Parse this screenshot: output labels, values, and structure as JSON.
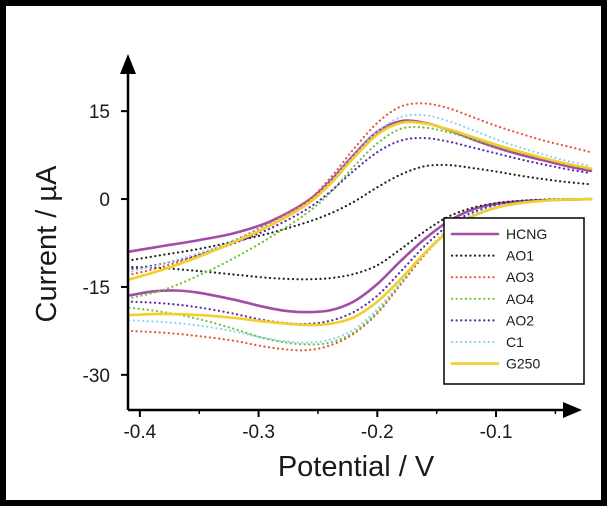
{
  "chart_data": {
    "type": "line",
    "title": "",
    "xlabel": "Potential / V",
    "ylabel": "Current / µA",
    "xlim": [
      -0.41,
      -0.02
    ],
    "ylim": [
      -36,
      21
    ],
    "x_ticks": [
      -0.4,
      -0.3,
      -0.2,
      -0.1
    ],
    "x_tick_labels": [
      "-0.4",
      "-0.3",
      "-0.2",
      "-0.1"
    ],
    "y_ticks": [
      -30,
      -15,
      0,
      15
    ],
    "y_tick_labels": [
      "-30",
      "-15",
      "0",
      "15"
    ],
    "grid": false,
    "legend_position": "lower-right",
    "series": [
      {
        "name": "HCNG",
        "color": "#a44ca8",
        "style": "solid",
        "forward": [
          [
            -0.41,
            -9
          ],
          [
            -0.38,
            -8
          ],
          [
            -0.35,
            -7
          ],
          [
            -0.32,
            -5.8
          ],
          [
            -0.29,
            -3.8
          ],
          [
            -0.26,
            -0.5
          ],
          [
            -0.24,
            3
          ],
          [
            -0.22,
            7.5
          ],
          [
            -0.2,
            11.5
          ],
          [
            -0.18,
            13.3
          ],
          [
            -0.16,
            13
          ],
          [
            -0.14,
            11.8
          ],
          [
            -0.12,
            10.2
          ],
          [
            -0.1,
            8.8
          ],
          [
            -0.08,
            7.6
          ],
          [
            -0.06,
            6.6
          ],
          [
            -0.04,
            5.6
          ],
          [
            -0.02,
            4.8
          ]
        ],
        "reverse": [
          [
            -0.02,
            0
          ],
          [
            -0.04,
            -0.1
          ],
          [
            -0.06,
            -0.2
          ],
          [
            -0.08,
            -0.4
          ],
          [
            -0.1,
            -0.8
          ],
          [
            -0.12,
            -1.8
          ],
          [
            -0.14,
            -3.8
          ],
          [
            -0.16,
            -6.8
          ],
          [
            -0.18,
            -10.5
          ],
          [
            -0.2,
            -14.5
          ],
          [
            -0.22,
            -17.5
          ],
          [
            -0.24,
            -19
          ],
          [
            -0.26,
            -19.3
          ],
          [
            -0.28,
            -19
          ],
          [
            -0.3,
            -18.2
          ],
          [
            -0.32,
            -17.2
          ],
          [
            -0.35,
            -16
          ],
          [
            -0.37,
            -15.6
          ],
          [
            -0.39,
            -15.8
          ],
          [
            -0.41,
            -16.5
          ]
        ]
      },
      {
        "name": "AO1",
        "color": "#222222",
        "style": "dotted",
        "forward": [
          [
            -0.41,
            -10.5
          ],
          [
            -0.38,
            -9.5
          ],
          [
            -0.35,
            -8.5
          ],
          [
            -0.32,
            -7.2
          ],
          [
            -0.29,
            -5.8
          ],
          [
            -0.26,
            -4
          ],
          [
            -0.24,
            -2.5
          ],
          [
            -0.22,
            -0.5
          ],
          [
            -0.2,
            2
          ],
          [
            -0.18,
            4.2
          ],
          [
            -0.16,
            5.6
          ],
          [
            -0.14,
            5.8
          ],
          [
            -0.12,
            5.3
          ],
          [
            -0.1,
            4.7
          ],
          [
            -0.08,
            4
          ],
          [
            -0.06,
            3.4
          ],
          [
            -0.04,
            2.9
          ],
          [
            -0.02,
            2.5
          ]
        ],
        "reverse": [
          [
            -0.02,
            0
          ],
          [
            -0.04,
            0
          ],
          [
            -0.06,
            -0.1
          ],
          [
            -0.08,
            -0.3
          ],
          [
            -0.1,
            -0.7
          ],
          [
            -0.12,
            -1.5
          ],
          [
            -0.14,
            -3
          ],
          [
            -0.16,
            -5.5
          ],
          [
            -0.18,
            -8.5
          ],
          [
            -0.2,
            -11.3
          ],
          [
            -0.22,
            -12.8
          ],
          [
            -0.24,
            -13.5
          ],
          [
            -0.26,
            -13.7
          ],
          [
            -0.28,
            -13.6
          ],
          [
            -0.3,
            -13.3
          ],
          [
            -0.32,
            -12.9
          ],
          [
            -0.35,
            -12.3
          ],
          [
            -0.38,
            -11.8
          ],
          [
            -0.41,
            -11.6
          ]
        ]
      },
      {
        "name": "AO3",
        "color": "#e8553a",
        "style": "dotted",
        "forward": [
          [
            -0.41,
            -13
          ],
          [
            -0.38,
            -11.5
          ],
          [
            -0.35,
            -9.5
          ],
          [
            -0.32,
            -7
          ],
          [
            -0.29,
            -4
          ],
          [
            -0.26,
            -0.5
          ],
          [
            -0.24,
            3.5
          ],
          [
            -0.22,
            8.5
          ],
          [
            -0.2,
            13
          ],
          [
            -0.18,
            15.8
          ],
          [
            -0.16,
            16.3
          ],
          [
            -0.14,
            15.5
          ],
          [
            -0.12,
            14
          ],
          [
            -0.1,
            12.5
          ],
          [
            -0.08,
            11.2
          ],
          [
            -0.06,
            10
          ],
          [
            -0.04,
            9
          ],
          [
            -0.02,
            8
          ]
        ],
        "reverse": [
          [
            -0.02,
            0
          ],
          [
            -0.04,
            -0.1
          ],
          [
            -0.06,
            -0.3
          ],
          [
            -0.08,
            -0.7
          ],
          [
            -0.1,
            -1.5
          ],
          [
            -0.12,
            -3
          ],
          [
            -0.14,
            -5.5
          ],
          [
            -0.16,
            -9.5
          ],
          [
            -0.18,
            -14.5
          ],
          [
            -0.2,
            -19.5
          ],
          [
            -0.22,
            -23
          ],
          [
            -0.24,
            -25
          ],
          [
            -0.26,
            -25.8
          ],
          [
            -0.28,
            -25.6
          ],
          [
            -0.3,
            -25
          ],
          [
            -0.32,
            -24.2
          ],
          [
            -0.35,
            -23.4
          ],
          [
            -0.38,
            -22.8
          ],
          [
            -0.41,
            -22.5
          ]
        ]
      },
      {
        "name": "AO4",
        "color": "#6fc23a",
        "style": "dotted",
        "forward": [
          [
            -0.41,
            -17
          ],
          [
            -0.38,
            -15.5
          ],
          [
            -0.35,
            -13
          ],
          [
            -0.32,
            -10
          ],
          [
            -0.29,
            -6.5
          ],
          [
            -0.26,
            -2.5
          ],
          [
            -0.24,
            1
          ],
          [
            -0.22,
            5.5
          ],
          [
            -0.2,
            9.5
          ],
          [
            -0.18,
            12
          ],
          [
            -0.16,
            12.2
          ],
          [
            -0.14,
            11.4
          ],
          [
            -0.12,
            10.2
          ],
          [
            -0.1,
            9
          ],
          [
            -0.08,
            7.9
          ],
          [
            -0.06,
            6.9
          ],
          [
            -0.04,
            6
          ],
          [
            -0.02,
            5.2
          ]
        ],
        "reverse": [
          [
            -0.02,
            0
          ],
          [
            -0.04,
            -0.1
          ],
          [
            -0.06,
            -0.3
          ],
          [
            -0.08,
            -0.6
          ],
          [
            -0.1,
            -1.3
          ],
          [
            -0.12,
            -2.7
          ],
          [
            -0.14,
            -5.2
          ],
          [
            -0.16,
            -9.2
          ],
          [
            -0.18,
            -14.3
          ],
          [
            -0.2,
            -19.3
          ],
          [
            -0.22,
            -22.8
          ],
          [
            -0.24,
            -24.5
          ],
          [
            -0.26,
            -24.8
          ],
          [
            -0.28,
            -24.4
          ],
          [
            -0.3,
            -23.5
          ],
          [
            -0.32,
            -22.2
          ],
          [
            -0.35,
            -20.5
          ],
          [
            -0.38,
            -19.3
          ],
          [
            -0.41,
            -18.5
          ]
        ]
      },
      {
        "name": "AO2",
        "color": "#5a2aa8",
        "style": "dotted",
        "forward": [
          [
            -0.41,
            -12
          ],
          [
            -0.38,
            -11
          ],
          [
            -0.35,
            -9.5
          ],
          [
            -0.32,
            -7.5
          ],
          [
            -0.29,
            -5
          ],
          [
            -0.26,
            -1.8
          ],
          [
            -0.24,
            1.2
          ],
          [
            -0.22,
            4.8
          ],
          [
            -0.2,
            8
          ],
          [
            -0.18,
            10
          ],
          [
            -0.16,
            10.4
          ],
          [
            -0.14,
            9.8
          ],
          [
            -0.12,
            8.8
          ],
          [
            -0.1,
            7.8
          ],
          [
            -0.08,
            6.8
          ],
          [
            -0.06,
            5.9
          ],
          [
            -0.04,
            5.1
          ],
          [
            -0.02,
            4.4
          ]
        ],
        "reverse": [
          [
            -0.02,
            0
          ],
          [
            -0.04,
            -0.1
          ],
          [
            -0.06,
            -0.2
          ],
          [
            -0.08,
            -0.5
          ],
          [
            -0.1,
            -1.1
          ],
          [
            -0.12,
            -2.3
          ],
          [
            -0.14,
            -4.5
          ],
          [
            -0.16,
            -8
          ],
          [
            -0.18,
            -12.3
          ],
          [
            -0.2,
            -16.5
          ],
          [
            -0.22,
            -19.3
          ],
          [
            -0.24,
            -20.8
          ],
          [
            -0.26,
            -21.3
          ],
          [
            -0.28,
            -21.1
          ],
          [
            -0.3,
            -20.5
          ],
          [
            -0.32,
            -19.6
          ],
          [
            -0.35,
            -18.5
          ],
          [
            -0.38,
            -17.8
          ],
          [
            -0.41,
            -17.5
          ]
        ]
      },
      {
        "name": "C1",
        "color": "#8fd4ee",
        "style": "dotted",
        "forward": [
          [
            -0.41,
            -12.5
          ],
          [
            -0.38,
            -11
          ],
          [
            -0.35,
            -9.2
          ],
          [
            -0.32,
            -7
          ],
          [
            -0.29,
            -4.2
          ],
          [
            -0.26,
            -0.8
          ],
          [
            -0.24,
            2.8
          ],
          [
            -0.22,
            7.3
          ],
          [
            -0.2,
            11.5
          ],
          [
            -0.18,
            14
          ],
          [
            -0.16,
            14.3
          ],
          [
            -0.14,
            13.3
          ],
          [
            -0.12,
            11.8
          ],
          [
            -0.1,
            10.2
          ],
          [
            -0.08,
            8.8
          ],
          [
            -0.06,
            7.6
          ],
          [
            -0.04,
            6.5
          ],
          [
            -0.02,
            5.6
          ]
        ],
        "reverse": [
          [
            -0.02,
            0
          ],
          [
            -0.04,
            -0.1
          ],
          [
            -0.06,
            -0.3
          ],
          [
            -0.08,
            -0.6
          ],
          [
            -0.1,
            -1.3
          ],
          [
            -0.12,
            -2.7
          ],
          [
            -0.14,
            -5.2
          ],
          [
            -0.16,
            -9.1
          ],
          [
            -0.18,
            -14
          ],
          [
            -0.2,
            -18.8
          ],
          [
            -0.22,
            -22.3
          ],
          [
            -0.24,
            -24
          ],
          [
            -0.26,
            -24.5
          ],
          [
            -0.28,
            -24.2
          ],
          [
            -0.3,
            -23.5
          ],
          [
            -0.32,
            -22.6
          ],
          [
            -0.35,
            -21.6
          ],
          [
            -0.38,
            -21
          ],
          [
            -0.41,
            -20.7
          ]
        ]
      },
      {
        "name": "G250",
        "color": "#f2cf2a",
        "style": "solid",
        "forward": [
          [
            -0.41,
            -13.8
          ],
          [
            -0.38,
            -12
          ],
          [
            -0.35,
            -9.8
          ],
          [
            -0.32,
            -7.3
          ],
          [
            -0.29,
            -4.5
          ],
          [
            -0.26,
            -1
          ],
          [
            -0.24,
            2.5
          ],
          [
            -0.22,
            7
          ],
          [
            -0.2,
            11
          ],
          [
            -0.18,
            13
          ],
          [
            -0.16,
            12.9
          ],
          [
            -0.14,
            11.9
          ],
          [
            -0.12,
            10.6
          ],
          [
            -0.1,
            9.3
          ],
          [
            -0.08,
            8.1
          ],
          [
            -0.06,
            7
          ],
          [
            -0.04,
            6
          ],
          [
            -0.02,
            5.2
          ]
        ],
        "reverse": [
          [
            -0.02,
            0
          ],
          [
            -0.04,
            -0.1
          ],
          [
            -0.06,
            -0.3
          ],
          [
            -0.08,
            -0.7
          ],
          [
            -0.1,
            -1.5
          ],
          [
            -0.12,
            -3
          ],
          [
            -0.14,
            -5.5
          ],
          [
            -0.16,
            -9.2
          ],
          [
            -0.18,
            -13.6
          ],
          [
            -0.2,
            -17.5
          ],
          [
            -0.22,
            -20.2
          ],
          [
            -0.24,
            -21.3
          ],
          [
            -0.26,
            -21.5
          ],
          [
            -0.28,
            -21.2
          ],
          [
            -0.3,
            -20.8
          ],
          [
            -0.32,
            -20.3
          ],
          [
            -0.35,
            -19.8
          ],
          [
            -0.38,
            -19.6
          ],
          [
            -0.41,
            -19.8
          ]
        ]
      }
    ]
  }
}
